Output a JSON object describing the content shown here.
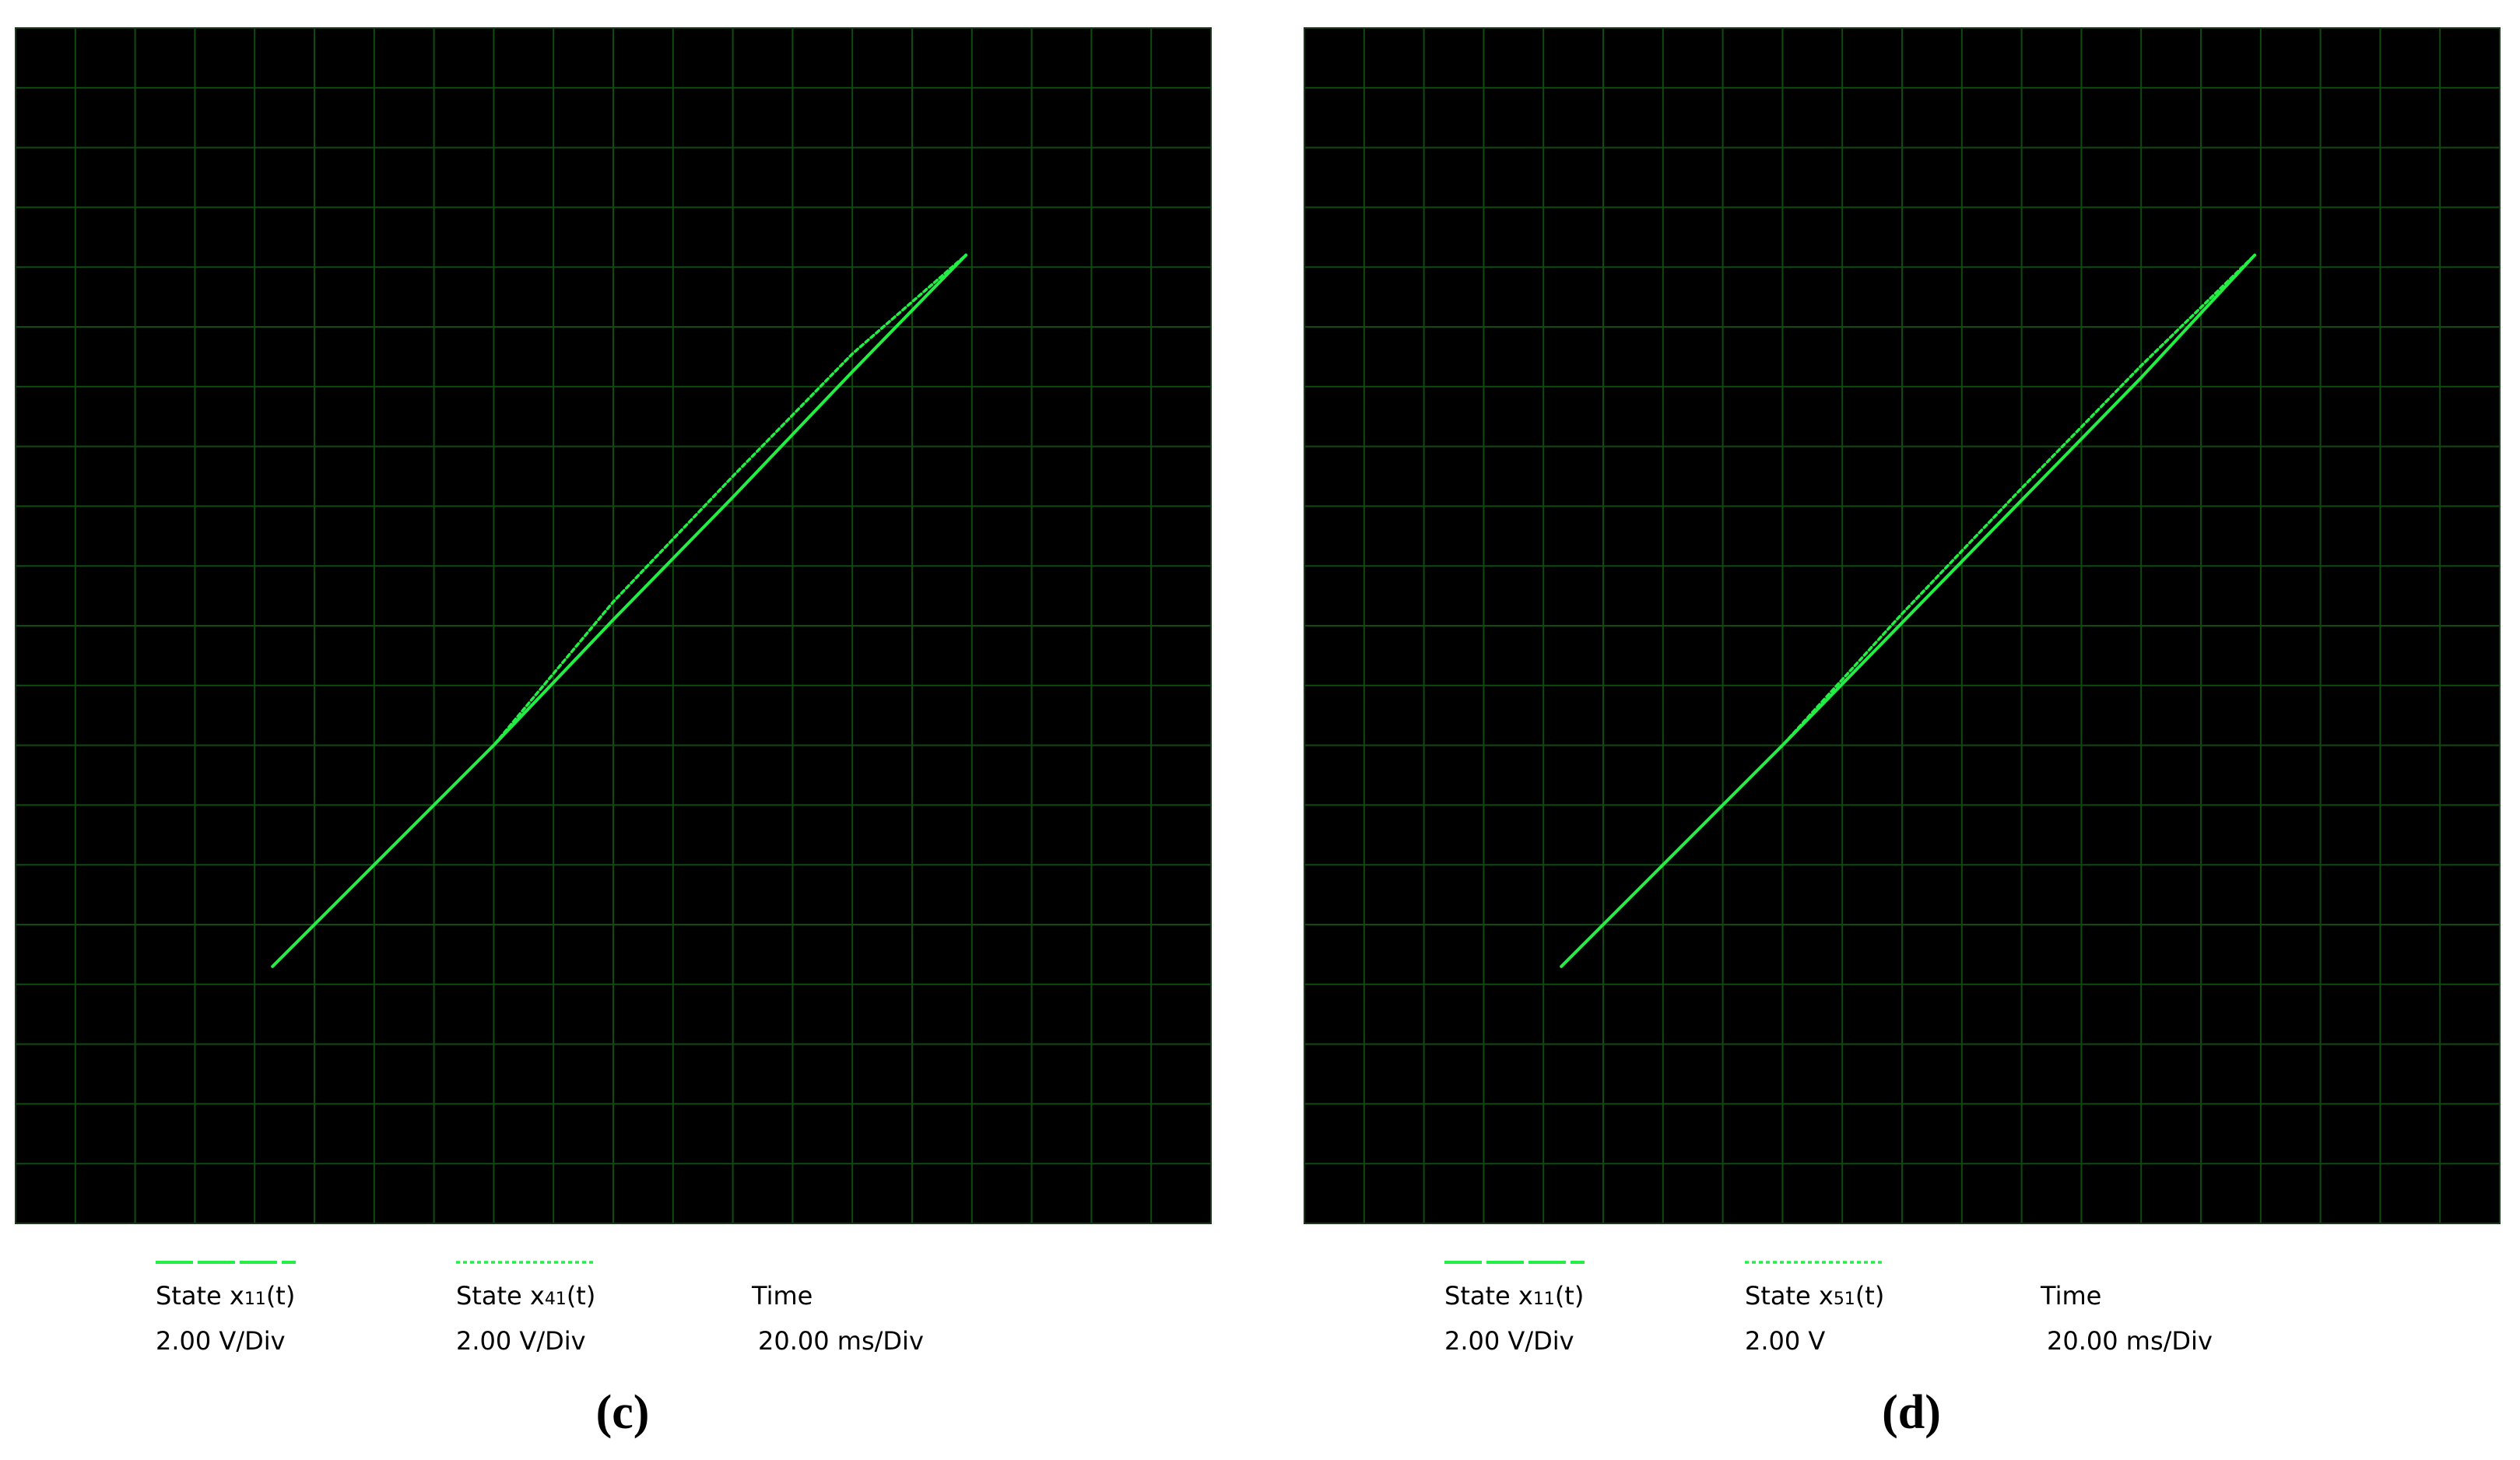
{
  "panels": [
    {
      "caption": "(c)",
      "legend": [
        {
          "style": "dashed",
          "name_prefix": "State x",
          "name_sub": "11",
          "name_suffix": "(t)",
          "scale": "2.00 V/Div"
        },
        {
          "style": "dotted",
          "name_prefix": "State x",
          "name_sub": "41",
          "name_suffix": "(t)",
          "scale": "2.00 V/Div"
        },
        {
          "style": "none",
          "name_prefix": "Time",
          "name_sub": "",
          "name_suffix": "",
          "scale": "20.00 ms/Div"
        }
      ]
    },
    {
      "caption": "(d)",
      "legend": [
        {
          "style": "dashed",
          "name_prefix": "State x",
          "name_sub": "11",
          "name_suffix": "(t)",
          "scale": "2.00 V/Div"
        },
        {
          "style": "dotted",
          "name_prefix": "State x",
          "name_sub": "51",
          "name_suffix": "(t)",
          "scale": "2.00 V"
        },
        {
          "style": "none",
          "name_prefix": "Time",
          "name_sub": "",
          "name_suffix": "",
          "scale": "20.00 ms/Div"
        }
      ]
    }
  ],
  "colors": {
    "background": "#000000",
    "grid": "#0f4a0f",
    "trace": "#22ee44"
  },
  "chart_data": [
    {
      "type": "line",
      "title": "",
      "xlabel": "",
      "ylabel": "",
      "grid": true,
      "grid_divisions": {
        "x": 20,
        "y": 20
      },
      "xlim": [
        -20,
        20
      ],
      "ylim": [
        -20,
        20
      ],
      "series": [
        {
          "values": [
            [
              -11.4,
              -11.4
            ],
            [
              -4.0,
              -4.0
            ],
            [
              0.0,
              0.2
            ],
            [
              4.0,
              4.3
            ],
            [
              8.0,
              8.5
            ],
            [
              11.8,
              12.4
            ]
          ]
        },
        {
          "values": [
            [
              -11.4,
              -11.4
            ],
            [
              -4.0,
              -4.0
            ],
            [
              0.0,
              0.8
            ],
            [
              4.0,
              5.0
            ],
            [
              8.0,
              9.1
            ],
            [
              11.8,
              12.4
            ]
          ]
        }
      ]
    },
    {
      "type": "line",
      "title": "",
      "xlabel": "",
      "ylabel": "",
      "grid": true,
      "grid_divisions": {
        "x": 20,
        "y": 20
      },
      "xlim": [
        -20,
        20
      ],
      "ylim": [
        -20,
        20
      ],
      "series": [
        {
          "values": [
            [
              -11.4,
              -11.4
            ],
            [
              -4.0,
              -4.0
            ],
            [
              0.0,
              0.1
            ],
            [
              4.0,
              4.2
            ],
            [
              8.0,
              8.3
            ],
            [
              11.8,
              12.4
            ]
          ]
        },
        {
          "values": [
            [
              -11.4,
              -11.4
            ],
            [
              -4.0,
              -4.0
            ],
            [
              0.0,
              0.4
            ],
            [
              4.0,
              4.6
            ],
            [
              8.0,
              8.7
            ],
            [
              11.8,
              12.4
            ]
          ]
        }
      ]
    }
  ]
}
